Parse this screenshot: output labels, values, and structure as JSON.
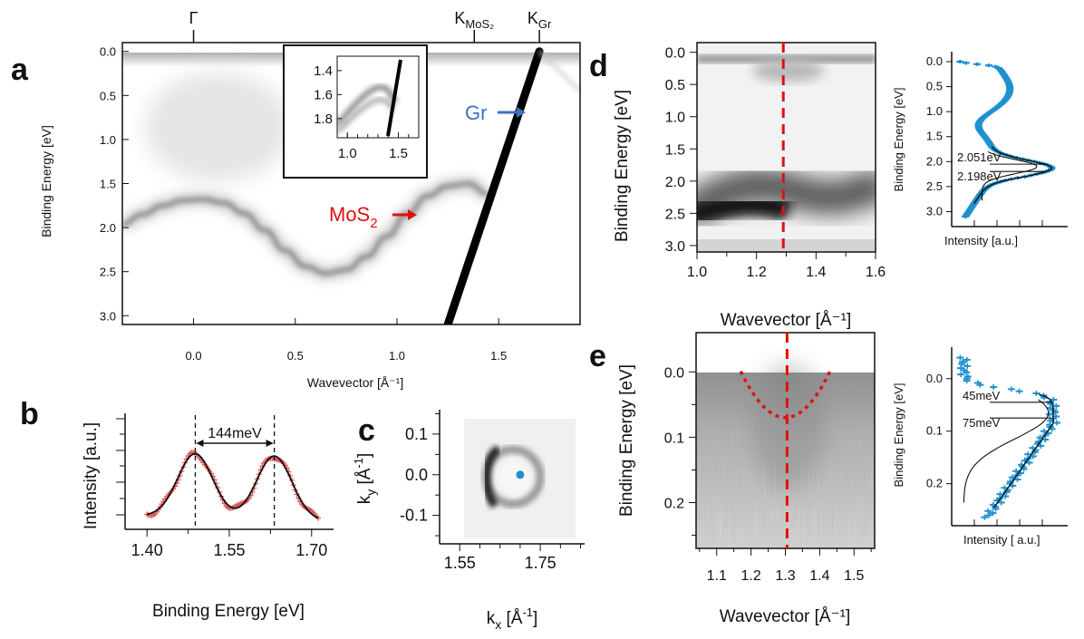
{
  "panels": {
    "a": "a",
    "b": "b",
    "c": "c",
    "d": "d",
    "e": "e"
  },
  "chart_data": [
    {
      "id": "a",
      "type": "heatmap",
      "xlabel": "Wavevector [Å⁻¹]",
      "ylabel": "Binding Energy [eV]",
      "xlim": [
        -0.35,
        1.9
      ],
      "ylim": [
        3.1,
        -0.1
      ],
      "xticks": [
        "0.0",
        "0.5",
        "1.0",
        "1.5"
      ],
      "xtick_values": [
        0,
        0.5,
        1.0,
        1.5
      ],
      "yticks": [
        "0.0",
        "0.5",
        "1.0",
        "1.5",
        "2.0",
        "2.5",
        "3.0"
      ],
      "ytick_values": [
        0,
        0.5,
        1.0,
        1.5,
        2.0,
        2.5,
        3.0
      ],
      "top_markers": [
        {
          "label": "Γ",
          "k": 0
        },
        {
          "label": "K",
          "sub": "MoS₂",
          "k": 1.38
        },
        {
          "label": "K",
          "sub": "Gr",
          "k": 1.7
        }
      ],
      "annotations": [
        {
          "text": "Gr",
          "color": "#3d73c0"
        },
        {
          "text": "MoS",
          "sub": "2",
          "color": "#e01010"
        }
      ],
      "bands": {
        "mos2": {
          "k": [
            -0.35,
            -0.25,
            -0.15,
            -0.05,
            0.05,
            0.15,
            0.25,
            0.35,
            0.45,
            0.55,
            0.65,
            0.75,
            0.85,
            0.95,
            1.05,
            1.15,
            1.25,
            1.35,
            1.45
          ],
          "E": [
            1.96,
            1.85,
            1.75,
            1.69,
            1.68,
            1.72,
            1.84,
            2.03,
            2.26,
            2.44,
            2.52,
            2.48,
            2.33,
            2.1,
            1.85,
            1.64,
            1.53,
            1.5,
            1.62
          ]
        },
        "graphene": {
          "k": [
            1.25,
            1.7
          ],
          "E": [
            3.1,
            0.0
          ]
        }
      },
      "inset": {
        "xticks": [
          "1.0",
          "1.5"
        ],
        "xtick_values": [
          1.0,
          1.5
        ],
        "yticks": [
          "1.4",
          "1.6",
          "1.8"
        ],
        "ytick_values": [
          1.4,
          1.6,
          1.8
        ],
        "xlim": [
          0.9,
          1.7
        ],
        "ylim": [
          1.96,
          1.28
        ]
      }
    },
    {
      "id": "b",
      "type": "line",
      "xlabel": "Binding Energy [eV]",
      "ylabel": "Intensity [a.u.]",
      "xlim": [
        1.36,
        1.74
      ],
      "xticks": [
        "1.40",
        "1.55",
        "1.70"
      ],
      "xtick_values": [
        1.4,
        1.55,
        1.7
      ],
      "peaks": [
        1.488,
        1.632
      ],
      "splitting_label": "144meV",
      "series": [
        {
          "name": "data",
          "color": "#e05050"
        },
        {
          "name": "fit",
          "color": "#111111"
        }
      ]
    },
    {
      "id": "c",
      "type": "heatmap",
      "xlabel": "kx [Å⁻¹]",
      "ylabel": "ky [Å⁻¹]",
      "xlim": [
        1.5,
        1.86
      ],
      "ylim": [
        -0.17,
        0.16
      ],
      "xticks": [
        "1.55",
        "1.75"
      ],
      "xtick_values": [
        1.55,
        1.75
      ],
      "yticks": [
        "0.1",
        "0.0",
        "-0.1"
      ],
      "ytick_values": [
        0.1,
        0.0,
        -0.1
      ],
      "marker": {
        "kx": 1.7,
        "ky": 0.0,
        "color": "#1e90d0"
      }
    },
    {
      "id": "d",
      "type": "heatmap",
      "xlabel": "Wavevector [Å⁻¹]",
      "ylabel": "Binding Energy [eV]",
      "xlim": [
        1.0,
        1.6
      ],
      "ylim": [
        3.1,
        -0.15
      ],
      "xticks": [
        "1.0",
        "1.2",
        "1.4",
        "1.6"
      ],
      "xtick_values": [
        1.0,
        1.2,
        1.4,
        1.6
      ],
      "yticks": [
        "0.0",
        "0.5",
        "1.0",
        "1.5",
        "2.0",
        "2.5",
        "3.0"
      ],
      "ytick_values": [
        0,
        0.5,
        1.0,
        1.5,
        2.0,
        2.5,
        3.0
      ],
      "cut_k": 1.29
    },
    {
      "id": "d-edc",
      "type": "line",
      "xlabel": "Intensity [a.u.]",
      "ylabel": "Binding Energy [eV]",
      "ylim": [
        3.3,
        -0.2
      ],
      "yticks": [
        "0.0",
        "0.5",
        "1.0",
        "1.5",
        "2.0",
        "2.5",
        "3.0"
      ],
      "ytick_values": [
        0,
        0.5,
        1.0,
        1.5,
        2.0,
        2.5,
        3.0
      ],
      "peaks": [
        2.051,
        2.198
      ],
      "peak_labels": [
        "2.051eV",
        "2.198eV"
      ],
      "series": [
        {
          "name": "data",
          "color": "#1e90d0"
        },
        {
          "name": "fit",
          "color": "#111111"
        }
      ]
    },
    {
      "id": "e",
      "type": "heatmap",
      "xlabel": "Wavevector [Å⁻¹]",
      "ylabel": "Binding Energy [eV]",
      "xlim": [
        1.04,
        1.56
      ],
      "ylim": [
        0.27,
        -0.06
      ],
      "xticks": [
        "1.1",
        "1.2",
        "1.3",
        "1.4",
        "1.5"
      ],
      "xtick_values": [
        1.1,
        1.2,
        1.3,
        1.4,
        1.5
      ],
      "yticks": [
        "0.0",
        "0.1",
        "0.2"
      ],
      "ytick_values": [
        0,
        0.1,
        0.2
      ],
      "cut_k": 1.305,
      "dispersion_vertex": [
        1.3,
        0.07
      ]
    },
    {
      "id": "e-edc",
      "type": "line",
      "xlabel": "Intensity [ a.u.]",
      "ylabel": "Binding Energy [eV]",
      "ylim": [
        0.28,
        -0.06
      ],
      "yticks": [
        "0.0",
        "0.1",
        "0.2"
      ],
      "ytick_values": [
        0,
        0.1,
        0.2
      ],
      "peaks": [
        0.045,
        0.075
      ],
      "peak_labels": [
        "45meV",
        "75meV"
      ],
      "series": [
        {
          "name": "data",
          "color": "#1e90d0"
        },
        {
          "name": "fit",
          "color": "#111111"
        }
      ]
    }
  ]
}
